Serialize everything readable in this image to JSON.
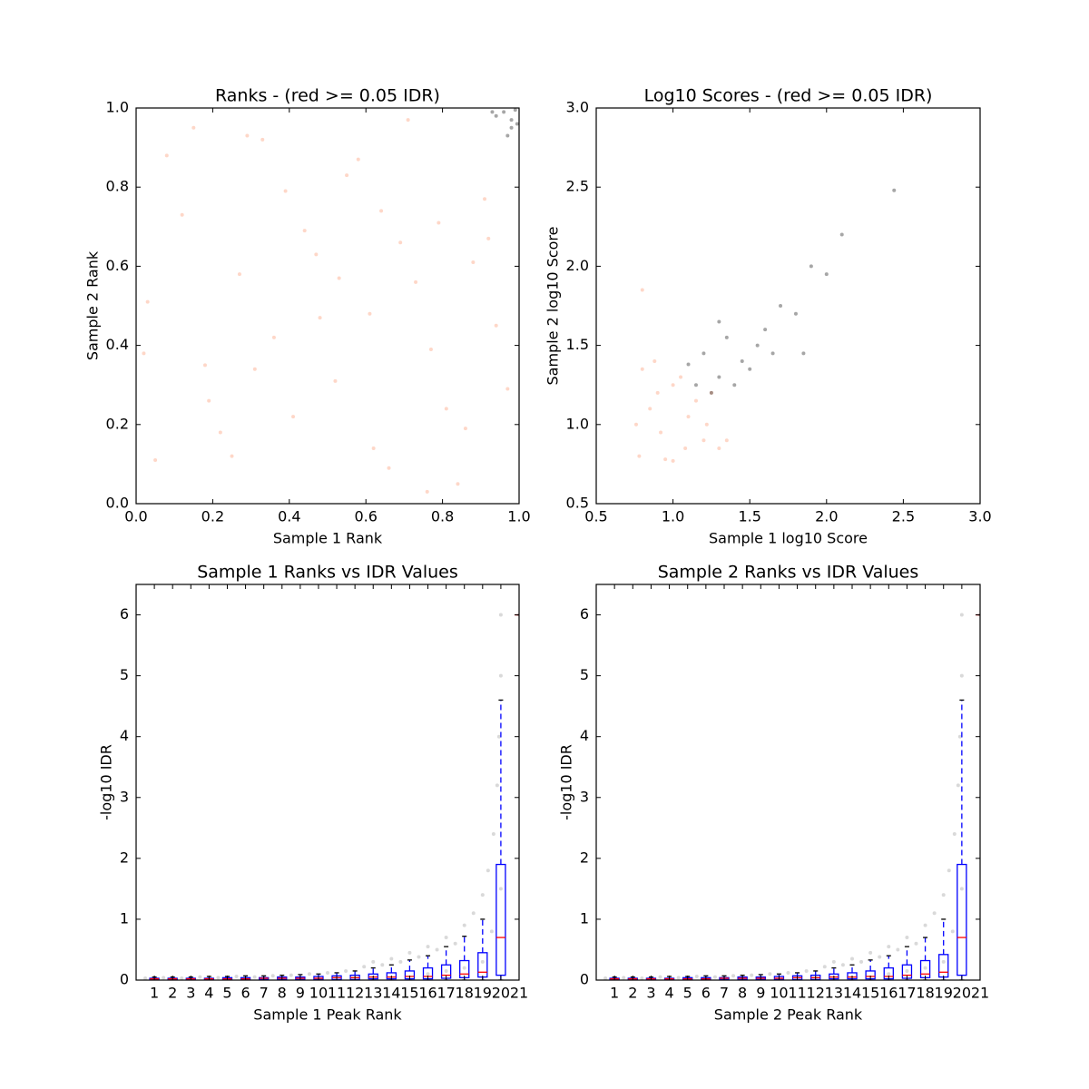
{
  "chart_data": [
    {
      "type": "scatter",
      "title": "Ranks - (red >= 0.05 IDR)",
      "xlabel": "Sample 1 Rank",
      "ylabel": "Sample 2 Rank",
      "xlim": [
        0,
        1
      ],
      "ylim": [
        0,
        1
      ],
      "xticks": [
        {
          "value": 0,
          "label": "0.0"
        },
        0.2,
        0.4,
        0.6,
        0.8,
        {
          "value": 1,
          "label": "1.0"
        }
      ],
      "yticks": [
        {
          "value": 0,
          "label": "0.0"
        },
        0.2,
        0.4,
        0.6,
        0.8,
        {
          "value": 1,
          "label": "1.0"
        }
      ],
      "alpha": 0.35,
      "series": [
        {
          "color": "#fc8d62",
          "x": [
            0.05,
            0.12,
            0.18,
            0.27,
            0.33,
            0.41,
            0.48,
            0.55,
            0.62,
            0.69,
            0.77,
            0.84,
            0.91,
            0.97,
            0.03,
            0.15,
            0.22,
            0.36,
            0.44,
            0.52,
            0.58,
            0.66,
            0.73,
            0.81,
            0.88,
            0.94,
            0.08,
            0.25,
            0.31,
            0.39,
            0.47,
            0.61,
            0.71,
            0.79,
            0.86,
            0.02,
            0.19,
            0.29,
            0.53,
            0.64,
            0.76,
            0.92
          ],
          "y": [
            0.11,
            0.73,
            0.35,
            0.58,
            0.92,
            0.22,
            0.47,
            0.83,
            0.14,
            0.66,
            0.39,
            0.05,
            0.77,
            0.29,
            0.51,
            0.95,
            0.18,
            0.42,
            0.69,
            0.31,
            0.87,
            0.09,
            0.56,
            0.24,
            0.61,
            0.45,
            0.88,
            0.12,
            0.34,
            0.79,
            0.63,
            0.48,
            0.97,
            0.71,
            0.19,
            0.38,
            0.26,
            0.93,
            0.57,
            0.74,
            0.03,
            0.67
          ]
        },
        {
          "color": "#000000",
          "x": [
            0.96,
            0.98,
            0.99,
            0.97,
            0.94,
            0.995,
            0.93,
            0.98
          ],
          "y": [
            0.99,
            0.97,
            0.995,
            0.93,
            0.98,
            0.96,
            0.99,
            0.95
          ]
        }
      ]
    },
    {
      "type": "scatter",
      "title": "Log10 Scores - (red >= 0.05 IDR)",
      "xlabel": "Sample 1 log10 Score",
      "ylabel": "Sample 2 log10 Score",
      "xlim": [
        0.5,
        3
      ],
      "ylim": [
        0.5,
        3
      ],
      "xticks": [
        0.5,
        {
          "value": 1,
          "label": "1.0"
        },
        1.5,
        {
          "value": 2,
          "label": "2.0"
        },
        2.5,
        {
          "value": 3,
          "label": "3.0"
        }
      ],
      "yticks": [
        0.5,
        {
          "value": 1,
          "label": "1.0"
        },
        1.5,
        {
          "value": 2,
          "label": "2.0"
        },
        2.5,
        {
          "value": 3,
          "label": "3.0"
        }
      ],
      "alpha": 0.35,
      "series": [
        {
          "color": "#fc8d62",
          "x": [
            0.78,
            0.85,
            0.92,
            1.0,
            1.08,
            1.15,
            1.22,
            0.8,
            0.95,
            1.05,
            1.2,
            0.9,
            1.1,
            1.3,
            0.76,
            1.0,
            1.25,
            0.88,
            0.8,
            1.35
          ],
          "y": [
            0.8,
            1.1,
            0.95,
            1.25,
            0.85,
            1.15,
            1.0,
            1.35,
            0.78,
            1.3,
            0.9,
            1.2,
            1.05,
            0.85,
            1.0,
            0.77,
            1.2,
            1.4,
            1.85,
            0.9
          ]
        },
        {
          "color": "#000000",
          "x": [
            1.1,
            1.15,
            1.2,
            1.3,
            1.35,
            1.45,
            1.5,
            1.6,
            1.7,
            1.8,
            1.9,
            2.1,
            2.44,
            1.25,
            1.4,
            1.55,
            1.65,
            2.0,
            1.3,
            1.85
          ],
          "y": [
            1.38,
            1.25,
            1.45,
            1.3,
            1.55,
            1.4,
            1.35,
            1.6,
            1.75,
            1.7,
            2.0,
            2.2,
            2.48,
            1.2,
            1.25,
            1.5,
            1.45,
            1.95,
            1.65,
            1.45
          ]
        }
      ]
    },
    {
      "type": "box",
      "title": "Sample 1 Ranks vs IDR Values",
      "xlabel": "Sample 1 Peak Rank",
      "ylabel": "-log10 IDR",
      "xlim": [
        0,
        21
      ],
      "ylim": [
        0,
        6.5
      ],
      "xticks": [
        1,
        2,
        3,
        4,
        5,
        6,
        7,
        8,
        9,
        10,
        11,
        12,
        13,
        14,
        15,
        16,
        17,
        18,
        19,
        20,
        21
      ],
      "yticks": [
        0,
        1,
        2,
        3,
        4,
        5,
        6
      ],
      "alpha": 0.15,
      "series": [
        {
          "color": "#000000",
          "x": [
            0.5,
            1.5,
            2.5,
            3.5,
            4.5,
            5.5,
            6.5,
            7.5,
            8.5,
            9.5,
            10.5,
            11.5,
            12.5,
            13,
            13.5,
            14,
            14.5,
            15,
            15.5,
            16,
            16.5,
            17,
            17.5,
            18,
            18.5,
            19,
            19.3,
            19.6,
            19.8,
            19.9,
            20,
            20,
            18,
            16,
            19,
            17,
            19.5,
            20
          ],
          "y": [
            0.03,
            0.04,
            0.03,
            0.05,
            0.04,
            0.06,
            0.05,
            0.07,
            0.08,
            0.1,
            0.12,
            0.15,
            0.22,
            0.3,
            0.25,
            0.35,
            0.3,
            0.45,
            0.38,
            0.55,
            0.5,
            0.7,
            0.6,
            0.9,
            1.1,
            1.4,
            1.8,
            2.4,
            3.2,
            4.0,
            5.0,
            6.0,
            0.2,
            0.1,
            0.3,
            0.15,
            0.8,
            1.5
          ]
        }
      ],
      "boxes": {
        "whislo": [
          0,
          0,
          0,
          0,
          0,
          0,
          0,
          0,
          0,
          0,
          0,
          0,
          0,
          0,
          0,
          0,
          0,
          0,
          0,
          0,
          6
        ],
        "q1": [
          0.01,
          0.01,
          0.01,
          0.01,
          0.01,
          0.01,
          0.01,
          0.01,
          0.01,
          0.01,
          0.01,
          0.01,
          0.02,
          0.02,
          0.02,
          0.02,
          0.03,
          0.04,
          0.05,
          0.08,
          6
        ],
        "med": [
          0.02,
          0.02,
          0.02,
          0.02,
          0.02,
          0.02,
          0.03,
          0.03,
          0.03,
          0.03,
          0.04,
          0.04,
          0.05,
          0.05,
          0.06,
          0.06,
          0.08,
          0.1,
          0.13,
          0.7,
          6
        ],
        "q3": [
          0.03,
          0.03,
          0.03,
          0.03,
          0.04,
          0.04,
          0.04,
          0.05,
          0.05,
          0.06,
          0.07,
          0.08,
          0.1,
          0.12,
          0.15,
          0.2,
          0.25,
          0.32,
          0.45,
          1.9,
          6
        ],
        "whishi": [
          0.05,
          0.05,
          0.05,
          0.06,
          0.06,
          0.07,
          0.07,
          0.08,
          0.09,
          0.1,
          0.12,
          0.15,
          0.2,
          0.25,
          0.33,
          0.4,
          0.55,
          0.72,
          1.0,
          4.6,
          6
        ]
      }
    },
    {
      "type": "box",
      "title": "Sample 2 Ranks vs IDR Values",
      "xlabel": "Sample 2 Peak Rank",
      "ylabel": "-log10 IDR",
      "xlim": [
        0,
        21
      ],
      "ylim": [
        0,
        6.5
      ],
      "xticks": [
        1,
        2,
        3,
        4,
        5,
        6,
        7,
        8,
        9,
        10,
        11,
        12,
        13,
        14,
        15,
        16,
        17,
        18,
        19,
        20,
        21
      ],
      "yticks": [
        0,
        1,
        2,
        3,
        4,
        5,
        6
      ],
      "alpha": 0.15,
      "series": [
        {
          "color": "#000000",
          "x": [
            0.5,
            1.5,
            2.5,
            3.5,
            4.5,
            5.5,
            6.5,
            7.5,
            8.5,
            9.5,
            10.5,
            11.5,
            12.5,
            13,
            13.5,
            14,
            14.5,
            15,
            15.5,
            16,
            16.5,
            17,
            17.5,
            18,
            18.5,
            19,
            19.3,
            19.6,
            19.8,
            19.9,
            20,
            20,
            18,
            16,
            19,
            17,
            19.5,
            20
          ],
          "y": [
            0.03,
            0.04,
            0.03,
            0.05,
            0.04,
            0.06,
            0.05,
            0.07,
            0.08,
            0.1,
            0.12,
            0.15,
            0.22,
            0.3,
            0.25,
            0.35,
            0.3,
            0.45,
            0.38,
            0.55,
            0.5,
            0.7,
            0.6,
            0.9,
            1.1,
            1.4,
            1.8,
            2.4,
            3.2,
            4.0,
            5.0,
            6.0,
            0.2,
            0.1,
            0.3,
            0.15,
            0.8,
            1.5
          ]
        }
      ],
      "boxes": {
        "whislo": [
          0,
          0,
          0,
          0,
          0,
          0,
          0,
          0,
          0,
          0,
          0,
          0,
          0,
          0,
          0,
          0,
          0,
          0,
          0,
          0,
          6
        ],
        "q1": [
          0.01,
          0.01,
          0.01,
          0.01,
          0.01,
          0.01,
          0.01,
          0.01,
          0.01,
          0.01,
          0.01,
          0.01,
          0.02,
          0.02,
          0.02,
          0.02,
          0.03,
          0.04,
          0.05,
          0.08,
          6
        ],
        "med": [
          0.02,
          0.02,
          0.02,
          0.02,
          0.02,
          0.02,
          0.03,
          0.03,
          0.03,
          0.03,
          0.04,
          0.04,
          0.05,
          0.05,
          0.06,
          0.06,
          0.08,
          0.1,
          0.13,
          0.7,
          6
        ],
        "q3": [
          0.03,
          0.03,
          0.03,
          0.03,
          0.04,
          0.04,
          0.04,
          0.05,
          0.05,
          0.06,
          0.07,
          0.08,
          0.1,
          0.12,
          0.15,
          0.2,
          0.25,
          0.32,
          0.42,
          1.9,
          6
        ],
        "whishi": [
          0.05,
          0.05,
          0.05,
          0.06,
          0.06,
          0.07,
          0.07,
          0.08,
          0.09,
          0.1,
          0.12,
          0.15,
          0.2,
          0.25,
          0.33,
          0.4,
          0.55,
          0.7,
          1.0,
          4.6,
          6
        ]
      }
    }
  ]
}
